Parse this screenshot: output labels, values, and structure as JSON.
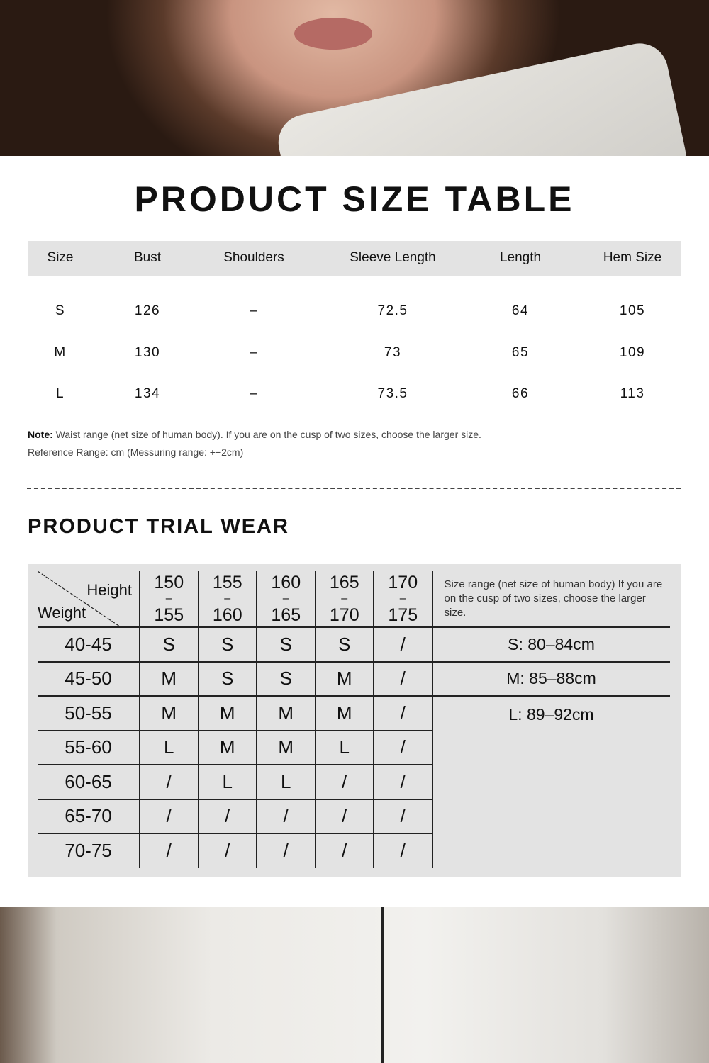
{
  "size_table": {
    "title": "PRODUCT SIZE TABLE",
    "headers": [
      "Size",
      "Bust",
      "Shoulders",
      "Sleeve Length",
      "Length",
      "Hem Size"
    ],
    "rows": [
      [
        "S",
        "126",
        "–",
        "72.5",
        "64",
        "105"
      ],
      [
        "M",
        "130",
        "–",
        "73",
        "65",
        "109"
      ],
      [
        "L",
        "134",
        "–",
        "73.5",
        "66",
        "113"
      ]
    ],
    "note_label": "Note:",
    "note": " Waist range (net size of human body). If you are on the cusp of two sizes, choose the larger size.",
    "reference": "Reference Range: cm (Messuring range: +−2cm)"
  },
  "trial": {
    "title": "PRODUCT TRIAL WEAR",
    "height_label": "Height",
    "weight_label": "Weight",
    "heights": [
      [
        "150",
        "155"
      ],
      [
        "155",
        "160"
      ],
      [
        "160",
        "165"
      ],
      [
        "165",
        "170"
      ],
      [
        "170",
        "175"
      ]
    ],
    "dash": "–",
    "side_note": "Size range (net size of human body) If you are on the cusp of two sizes, choose the larger size.",
    "rows": [
      {
        "w": "40-45",
        "v": [
          "S",
          "S",
          "S",
          "S",
          "/"
        ]
      },
      {
        "w": "45-50",
        "v": [
          "M",
          "S",
          "S",
          "M",
          "/"
        ]
      },
      {
        "w": "50-55",
        "v": [
          "M",
          "M",
          "M",
          "M",
          "/"
        ]
      },
      {
        "w": "55-60",
        "v": [
          "L",
          "M",
          "M",
          "L",
          "/"
        ]
      },
      {
        "w": "60-65",
        "v": [
          "/",
          "L",
          "L",
          "/",
          "/"
        ]
      },
      {
        "w": "65-70",
        "v": [
          "/",
          "/",
          "/",
          "/",
          "/"
        ]
      },
      {
        "w": "70-75",
        "v": [
          "/",
          "/",
          "/",
          "/",
          "/"
        ]
      }
    ],
    "ranges": [
      "S: 80–84cm",
      "M: 85–88cm",
      "L: 89–92cm"
    ]
  }
}
